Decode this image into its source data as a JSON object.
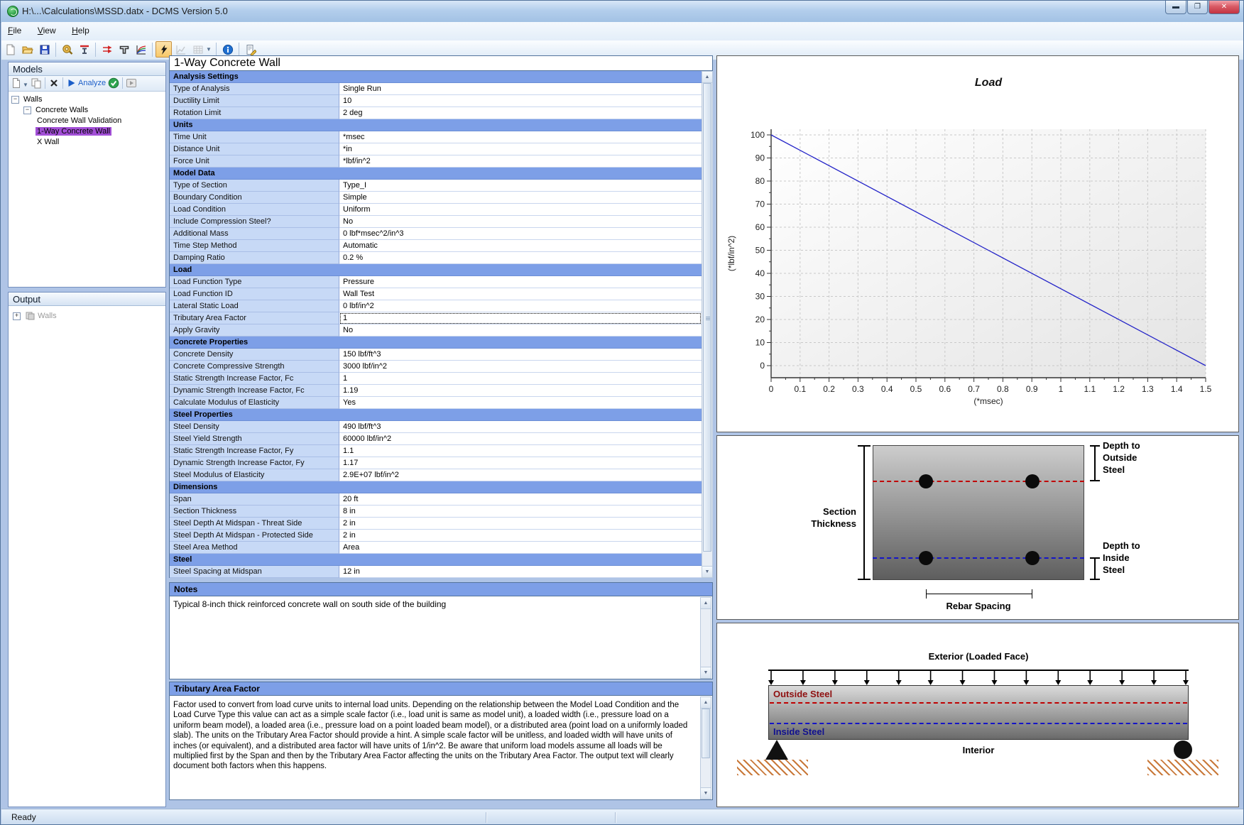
{
  "colors": {
    "section_header_blue": "#7D9FE7",
    "selection_purple": "#A24FD6",
    "chart_line_blue": "#2323C8",
    "outside_steel_red": "#C00000",
    "outside_text_red": "#8F1010",
    "inside_steel_blue": "#1414C8",
    "inside_text_blue": "#10108F",
    "hatch_orange": "#C9793A",
    "analyze_blue": "#1B5EC8",
    "validate_green": "#2EA44F"
  },
  "window": {
    "title": "H:\\...\\Calculations\\MSSD.datx  -  DCMS Version 5.0",
    "status": "Ready",
    "buttons": [
      "minimize",
      "maximize",
      "close"
    ]
  },
  "menu": {
    "items": [
      {
        "label": "File",
        "key": "F"
      },
      {
        "label": "View",
        "key": "V"
      },
      {
        "label": "Help",
        "key": "H"
      }
    ]
  },
  "toolbar": {
    "buttons": [
      {
        "icon": "new-document"
      },
      {
        "icon": "open-file"
      },
      {
        "icon": "save-file"
      },
      {
        "sep": true
      },
      {
        "icon": "units-measure"
      },
      {
        "icon": "section-ibeam"
      },
      {
        "sep": true
      },
      {
        "icon": "load-arrows"
      },
      {
        "icon": "section-tee"
      },
      {
        "icon": "load-curves"
      },
      {
        "sep": true
      },
      {
        "icon": "analyze-bolt",
        "active": true
      },
      {
        "icon": "results-chart",
        "disabled": true
      },
      {
        "icon": "results-table",
        "disabled": true,
        "caret": true
      },
      {
        "sep": true
      },
      {
        "icon": "info"
      },
      {
        "sep": true
      },
      {
        "icon": "report-edit"
      }
    ]
  },
  "models_panel": {
    "title": "Models",
    "analyze_label": "Analyze",
    "toolbar": [
      {
        "icon": "model-new",
        "caret": true
      },
      {
        "icon": "model-copy"
      },
      {
        "sep": true
      },
      {
        "icon": "model-delete"
      },
      {
        "sep": true
      },
      {
        "icon": "analyze-play",
        "label": "Analyze"
      },
      {
        "icon": "validate-check"
      },
      {
        "sep": true
      },
      {
        "icon": "model-run",
        "disabled": true
      }
    ],
    "tree": [
      {
        "label": "Walls",
        "level": 0,
        "expander": true
      },
      {
        "label": "Concrete Walls",
        "level": 1,
        "expander": true
      },
      {
        "label": "Concrete Wall Validation",
        "level": 2
      },
      {
        "label": "1-Way Concrete Wall",
        "level": 2,
        "selected": true
      },
      {
        "label": "X Wall",
        "level": 2
      }
    ]
  },
  "output_panel": {
    "title": "Output",
    "items": [
      {
        "label": "Walls",
        "disabled": true
      }
    ]
  },
  "properties": {
    "title": "1-Way Concrete Wall",
    "groups": [
      {
        "name": "Analysis Settings",
        "rows": [
          {
            "label": "Type of Analysis",
            "value": "Single Run"
          },
          {
            "label": "Ductility Limit",
            "value": "10"
          },
          {
            "label": "Rotation Limit",
            "value": "2 deg"
          }
        ]
      },
      {
        "name": "Units",
        "rows": [
          {
            "label": "Time Unit",
            "value": "*msec"
          },
          {
            "label": "Distance Unit",
            "value": "*in"
          },
          {
            "label": "Force Unit",
            "value": "*lbf/in^2"
          }
        ]
      },
      {
        "name": "Model Data",
        "rows": [
          {
            "label": "Type of Section",
            "value": "Type_I"
          },
          {
            "label": "Boundary Condition",
            "value": "Simple"
          },
          {
            "label": "Load Condition",
            "value": "Uniform"
          },
          {
            "label": "Include Compression Steel?",
            "value": "No"
          },
          {
            "label": "Additional Mass",
            "value": "0 lbf*msec^2/in^3"
          },
          {
            "label": "Time Step Method",
            "value": "Automatic"
          },
          {
            "label": "Damping Ratio",
            "value": "0.2 %"
          }
        ]
      },
      {
        "name": "Load",
        "rows": [
          {
            "label": "Load Function Type",
            "value": "Pressure"
          },
          {
            "label": "Load Function ID",
            "value": "Wall Test"
          },
          {
            "label": "Lateral Static Load",
            "value": "0 lbf/in^2"
          },
          {
            "label": "Tributary Area Factor",
            "value": "1",
            "focused": true
          },
          {
            "label": "Apply Gravity",
            "value": "No"
          }
        ]
      },
      {
        "name": "Concrete Properties",
        "rows": [
          {
            "label": "Concrete Density",
            "value": "150 lbf/ft^3"
          },
          {
            "label": "Concrete Compressive Strength",
            "value": "3000 lbf/in^2"
          },
          {
            "label": "Static Strength Increase Factor, Fc",
            "value": "1"
          },
          {
            "label": "Dynamic Strength Increase Factor, Fc",
            "value": "1.19"
          },
          {
            "label": "Calculate Modulus of Elasticity",
            "value": "Yes"
          }
        ]
      },
      {
        "name": "Steel Properties",
        "rows": [
          {
            "label": "Steel Density",
            "value": "490 lbf/ft^3"
          },
          {
            "label": "Steel Yield Strength",
            "value": "60000 lbf/in^2"
          },
          {
            "label": "Static Strength Increase Factor, Fy",
            "value": "1.1"
          },
          {
            "label": "Dynamic Strength Increase Factor, Fy",
            "value": "1.17"
          },
          {
            "label": "Steel Modulus of Elasticity",
            "value": "2.9E+07 lbf/in^2"
          }
        ]
      },
      {
        "name": "Dimensions",
        "rows": [
          {
            "label": "Span",
            "value": "20 ft"
          },
          {
            "label": "Section Thickness",
            "value": "8 in"
          },
          {
            "label": "Steel Depth At Midspan - Threat Side",
            "value": "2 in"
          },
          {
            "label": "Steel Depth At Midspan - Protected Side",
            "value": "2 in"
          },
          {
            "label": "Steel Area Method",
            "value": "Area"
          }
        ]
      },
      {
        "name": "Steel",
        "rows": [
          {
            "label": "Steel Spacing at Midspan",
            "value": "12 in"
          }
        ]
      }
    ]
  },
  "notes": {
    "header": "Notes",
    "text": "Typical 8-inch thick reinforced concrete wall on south side of the building"
  },
  "help": {
    "header": "Tributary Area Factor",
    "text": "Factor used to convert from load curve units to internal load units. Depending on the relationship between the Model Load Condition and the Load Curve Type this value can act as a simple scale factor (i.e., load unit is same as model unit), a loaded width (i.e., pressure load on a uniform beam model), a loaded area (i.e., pressure load on a point loaded beam model), or a distributed area (point load on a uniformly loaded slab).  The units on the Tributary Area Factor should provide a hint.  A simple scale factor will be unitless, and loaded width will have units of inches (or equivalent), and a distributed area factor will have units of 1/in^2.  Be aware that uniform load models assume all loads will be multiplied first by the Span and then by the Tributary Area Factor affecting the units on the Tributary Area Factor.  The output text will clearly document both factors when this happens."
  },
  "chart_data": {
    "type": "line",
    "title": "Load",
    "xlabel": "(*msec)",
    "ylabel": "(*lbf/in^2)",
    "xlim": [
      0,
      1.5
    ],
    "ylim": [
      0,
      100
    ],
    "x_tick_labels": [
      "0",
      "0.1",
      "0.2",
      "0.3",
      "0.4",
      "0.5",
      "0.6",
      "0.7",
      "0.8",
      "0.9",
      "1",
      "1.1",
      "1.2",
      "1.3",
      "1.4",
      "1.5"
    ],
    "y_tick_labels": [
      "0",
      "10",
      "20",
      "30",
      "40",
      "50",
      "60",
      "70",
      "80",
      "90",
      "100"
    ],
    "grid": "dashed",
    "legend": "none",
    "series": [
      {
        "name": "Load",
        "color": "#2323C8",
        "points": [
          [
            0,
            100
          ],
          [
            1.5,
            0
          ]
        ]
      }
    ]
  },
  "section_diagram": {
    "thickness_label": "Section\nThickness",
    "outside_label": "Depth to\nOutside\nSteel",
    "inside_label": "Depth to\nInside\nSteel",
    "spacing_label": "Rebar Spacing"
  },
  "beam_diagram": {
    "top_label": "Exterior (Loaded Face)",
    "outside_steel": "Outside Steel",
    "inside_steel": "Inside Steel",
    "bottom_label": "Interior"
  }
}
